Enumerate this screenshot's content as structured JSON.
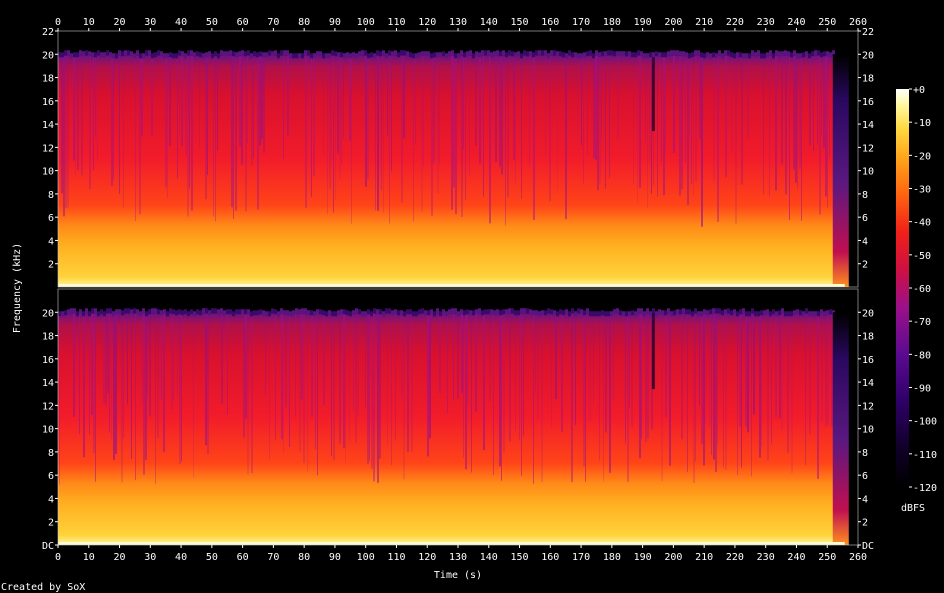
{
  "chart_data": {
    "type": "heatmap",
    "title": "",
    "xlabel": "Time (s)",
    "ylabel": "Frequency (kHz)",
    "x_ticks": [
      0,
      10,
      20,
      30,
      40,
      50,
      60,
      70,
      80,
      90,
      100,
      110,
      120,
      130,
      140,
      150,
      160,
      170,
      180,
      190,
      200,
      210,
      220,
      230,
      240,
      250,
      260
    ],
    "xlim": [
      0,
      260
    ],
    "channels": [
      {
        "name": "",
        "ylim": [
          0,
          22
        ],
        "y_ticks": [
          "22",
          "20",
          "18",
          "16",
          "14",
          "12",
          "10",
          "8",
          "6",
          "4",
          "2"
        ]
      },
      {
        "name": "",
        "ylim": [
          0,
          22
        ],
        "y_ticks": [
          "DC",
          "2",
          "4",
          "6",
          "8",
          "10",
          "12",
          "14",
          "16",
          "18",
          "20"
        ]
      }
    ],
    "colorbar": {
      "label": "dBFS",
      "ticks": [
        "+0",
        "-10",
        "-20",
        "-30",
        "-40",
        "-50",
        "-60",
        "-70",
        "-80",
        "-90",
        "-100",
        "-110",
        "-120"
      ],
      "range": [
        -120,
        0
      ],
      "colors": [
        "#000000",
        "#1a0033",
        "#3a0070",
        "#6a108a",
        "#a0108a",
        "#d01040",
        "#ee2020",
        "#ff5a10",
        "#ff9a10",
        "#ffd030",
        "#fff080",
        "#ffffff"
      ]
    },
    "audio_content_end_s": 257,
    "spectrum_cutoff_khz": 20
  },
  "footer": {
    "credit": "Created by SoX"
  }
}
